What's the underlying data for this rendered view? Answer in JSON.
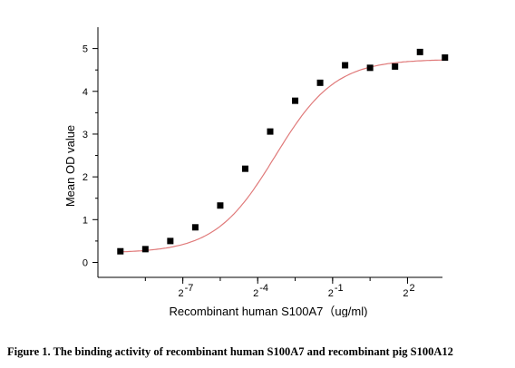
{
  "chart_data": {
    "type": "scatter",
    "ylabel": "Mean OD value",
    "xlabel": "Recombinant human  S100A7（ug/ml)",
    "x_scale": "log2",
    "xlim": [
      -10.4,
      3.4
    ],
    "ylim": [
      -0.35,
      5.5
    ],
    "yticks": [
      0,
      1,
      2,
      3,
      4,
      5
    ],
    "xtick_exponents": [
      -7,
      -4,
      -1,
      2
    ],
    "xtick_base": "2",
    "fit": {
      "type": "4PL",
      "bottom": 0.22,
      "top": 4.75,
      "ec50_log2": -3.3,
      "hill_log2": 1.2
    },
    "series": [
      {
        "x": [
          -9.5,
          -8.5,
          -7.5,
          -6.5,
          -5.5,
          -4.5,
          -3.5,
          -2.5,
          -1.5,
          -0.5,
          0.5,
          1.5,
          2.5,
          3.5
        ],
        "values": [
          0.26,
          0.31,
          0.5,
          0.82,
          1.33,
          2.19,
          3.06,
          3.78,
          4.2,
          4.61,
          4.55,
          4.58,
          4.92,
          4.79
        ]
      }
    ]
  },
  "caption": "Figure 1. The binding activity of recombinant human S100A7 and recombinant pig S100A12"
}
